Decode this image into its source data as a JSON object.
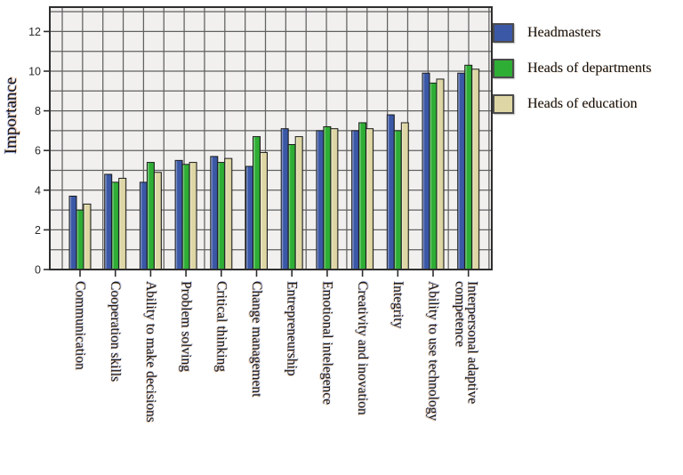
{
  "chart_data": {
    "type": "bar",
    "title": "",
    "xlabel": "",
    "ylabel": "Importance",
    "ylim": [
      0,
      13.2
    ],
    "yticks": [
      0,
      2,
      4,
      6,
      8,
      10,
      12
    ],
    "grid": "both",
    "legend_position": "top-right-outside",
    "categories": [
      "Communication",
      "Cooperation skills",
      "Ability to make decisions",
      "Problem solving",
      "Critical thinking",
      "Change management",
      "Entrepreneurship",
      "Emotional intelegence",
      "Creativity and inovation",
      "Integrity",
      "Ability to use technology",
      "Interpersonal adaptive competence"
    ],
    "category_label_lines": [
      [
        "Communication"
      ],
      [
        "Cooperation skills"
      ],
      [
        "Ability to make decisions"
      ],
      [
        "Problem solving"
      ],
      [
        "Critical thinking"
      ],
      [
        "Change management"
      ],
      [
        "Entrepreneurship"
      ],
      [
        "Emotional intelegence"
      ],
      [
        "Creativity and inovation"
      ],
      [
        "Integrity"
      ],
      [
        "Ability to use technology"
      ],
      [
        "Interpersonal adaptive",
        "competence"
      ]
    ],
    "series": [
      {
        "name": "Headmasters",
        "color": "#3b58a7",
        "values": [
          3.7,
          4.8,
          4.4,
          5.5,
          5.7,
          5.2,
          7.1,
          7.0,
          7.0,
          7.8,
          9.9,
          9.9
        ]
      },
      {
        "name": "Heads of departments",
        "color": "#2fae35",
        "values": [
          3.0,
          4.4,
          5.4,
          5.3,
          5.4,
          6.7,
          6.3,
          7.2,
          7.4,
          7.0,
          9.4,
          10.3
        ]
      },
      {
        "name": "Heads of education",
        "color": "#ded7a5",
        "values": [
          3.3,
          4.6,
          4.9,
          5.4,
          5.6,
          5.9,
          6.7,
          7.1,
          7.1,
          7.4,
          9.6,
          10.1
        ]
      }
    ]
  },
  "style_colors": {
    "plot_background": "#f1f0ee",
    "gridline": "#616161",
    "frame": "#2e2e2e",
    "bar_outline": "#1c1c1c"
  }
}
